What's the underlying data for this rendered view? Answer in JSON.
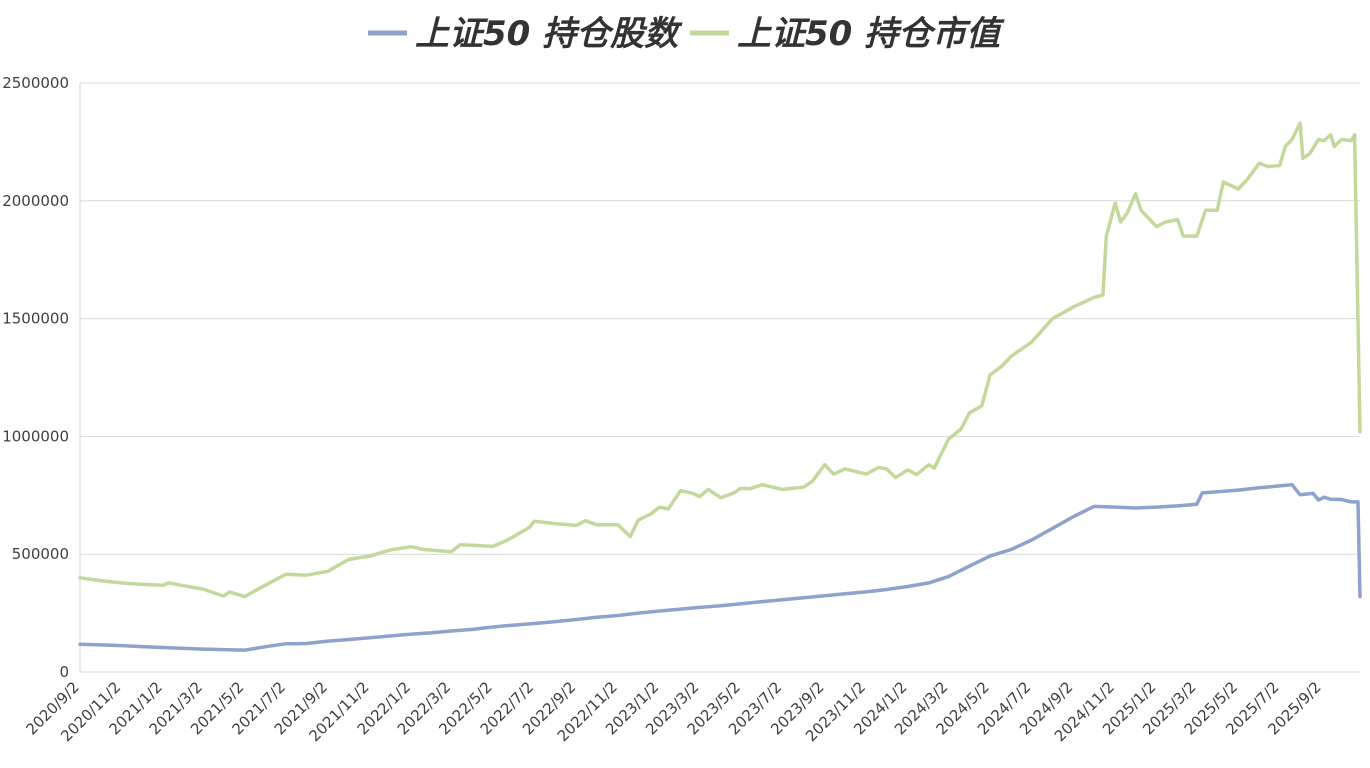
{
  "chart_data": {
    "type": "line",
    "title": "",
    "xlabel": "",
    "ylabel": "",
    "ylim": [
      0,
      2500000
    ],
    "yticks": [
      0,
      500000,
      1000000,
      1500000,
      2000000,
      2500000
    ],
    "ytick_labels": [
      "0",
      "500000",
      "1000000",
      "1500000",
      "2000000",
      "2500000"
    ],
    "x_tick_labels": [
      "2020/9/2",
      "2020/11/2",
      "2021/1/2",
      "2021/3/2",
      "2021/5/2",
      "2021/7/2",
      "2021/9/2",
      "2021/11/2",
      "2022/1/2",
      "2022/3/2",
      "2022/5/2",
      "2022/7/2",
      "2022/9/2",
      "2022/11/2",
      "2023/1/2",
      "2023/3/2",
      "2023/5/2",
      "2023/7/2",
      "2023/9/2",
      "2023/11/2",
      "2024/1/2",
      "2024/3/2",
      "2024/5/2",
      "2024/7/2",
      "2024/9/2",
      "2024/11/2",
      "2025/1/2",
      "2025/3/2",
      "2025/5/2",
      "2025/7/2",
      "2025/9/2"
    ],
    "grid": true,
    "legend_position": "top",
    "series": [
      {
        "name": "上证50 持仓股数",
        "color": "#8ea2cc",
        "points": [
          [
            "2020/9/2",
            118000
          ],
          [
            "2020/10/2",
            115000
          ],
          [
            "2020/11/2",
            112000
          ],
          [
            "2020/12/2",
            108000
          ],
          [
            "2021/1/2",
            104000
          ],
          [
            "2021/2/2",
            100000
          ],
          [
            "2021/3/2",
            97000
          ],
          [
            "2021/4/1",
            95000
          ],
          [
            "2021/4/15",
            94000
          ],
          [
            "2021/5/2",
            93000
          ],
          [
            "2021/6/1",
            107000
          ],
          [
            "2021/7/2",
            120000
          ],
          [
            "2021/7/15",
            120000
          ],
          [
            "2021/8/1",
            121000
          ],
          [
            "2021/9/2",
            131000
          ],
          [
            "2021/10/2",
            138000
          ],
          [
            "2021/11/2",
            145000
          ],
          [
            "2021/12/2",
            153000
          ],
          [
            "2022/1/2",
            161000
          ],
          [
            "2022/2/2",
            167000
          ],
          [
            "2022/3/2",
            174000
          ],
          [
            "2022/4/2",
            181000
          ],
          [
            "2022/5/2",
            191000
          ],
          [
            "2022/6/2",
            199000
          ],
          [
            "2022/7/2",
            206000
          ],
          [
            "2022/8/2",
            214000
          ],
          [
            "2022/9/2",
            223000
          ],
          [
            "2022/10/2",
            232000
          ],
          [
            "2022/11/2",
            240000
          ],
          [
            "2022/12/2",
            250000
          ],
          [
            "2023/1/2",
            259000
          ],
          [
            "2023/2/2",
            267000
          ],
          [
            "2023/3/2",
            274000
          ],
          [
            "2023/4/2",
            281000
          ],
          [
            "2023/5/2",
            290000
          ],
          [
            "2023/6/2",
            299000
          ],
          [
            "2023/7/2",
            307000
          ],
          [
            "2023/8/2",
            315000
          ],
          [
            "2023/9/2",
            324000
          ],
          [
            "2023/10/2",
            332000
          ],
          [
            "2023/11/2",
            340000
          ],
          [
            "2023/12/2",
            350000
          ],
          [
            "2024/1/2",
            363000
          ],
          [
            "2024/2/2",
            378000
          ],
          [
            "2024/3/2",
            405000
          ],
          [
            "2024/4/2",
            450000
          ],
          [
            "2024/5/2",
            492000
          ],
          [
            "2024/6/2",
            520000
          ],
          [
            "2024/7/2",
            560000
          ],
          [
            "2024/8/2",
            610000
          ],
          [
            "2024/9/2",
            660000
          ],
          [
            "2024/10/2",
            703000
          ],
          [
            "2024/11/2",
            700000
          ],
          [
            "2024/12/2",
            696000
          ],
          [
            "2025/1/2",
            700000
          ],
          [
            "2025/2/2",
            705000
          ],
          [
            "2025/3/2",
            712000
          ],
          [
            "2025/3/10",
            760000
          ],
          [
            "2025/4/2",
            765000
          ],
          [
            "2025/5/2",
            772000
          ],
          [
            "2025/6/2",
            782000
          ],
          [
            "2025/7/2",
            790000
          ],
          [
            "2025/7/20",
            795000
          ],
          [
            "2025/8/1",
            752000
          ],
          [
            "2025/8/20",
            758000
          ],
          [
            "2025/8/28",
            730000
          ],
          [
            "2025/9/5",
            742000
          ],
          [
            "2025/9/15",
            733000
          ],
          [
            "2025/10/1",
            732000
          ],
          [
            "2025/10/15",
            722000
          ],
          [
            "2025/10/25",
            722000
          ],
          [
            "2025/10/28",
            320000
          ]
        ]
      },
      {
        "name": "上证50 持仓市值",
        "color": "#c5d89c",
        "points": [
          [
            "2020/9/2",
            400000
          ],
          [
            "2020/10/2",
            388000
          ],
          [
            "2020/11/2",
            378000
          ],
          [
            "2020/12/2",
            372000
          ],
          [
            "2021/1/2",
            368000
          ],
          [
            "2021/1/10",
            378000
          ],
          [
            "2021/2/2",
            366000
          ],
          [
            "2021/3/2",
            352000
          ],
          [
            "2021/4/1",
            322000
          ],
          [
            "2021/4/10",
            340000
          ],
          [
            "2021/5/2",
            320000
          ],
          [
            "2021/6/1",
            368000
          ],
          [
            "2021/7/2",
            415000
          ],
          [
            "2021/8/1",
            411000
          ],
          [
            "2021/9/2",
            428000
          ],
          [
            "2021/10/2",
            478000
          ],
          [
            "2021/11/2",
            492000
          ],
          [
            "2021/12/2",
            518000
          ],
          [
            "2022/1/2",
            532000
          ],
          [
            "2022/1/20",
            520000
          ],
          [
            "2022/3/2",
            510000
          ],
          [
            "2022/3/15",
            540000
          ],
          [
            "2022/4/2",
            538000
          ],
          [
            "2022/5/2",
            533000
          ],
          [
            "2022/5/20",
            555000
          ],
          [
            "2022/6/2",
            575000
          ],
          [
            "2022/6/25",
            615000
          ],
          [
            "2022/7/2",
            640000
          ],
          [
            "2022/8/2",
            630000
          ],
          [
            "2022/9/2",
            622000
          ],
          [
            "2022/9/15",
            642000
          ],
          [
            "2022/10/2",
            625000
          ],
          [
            "2022/11/2",
            625000
          ],
          [
            "2022/11/20",
            575000
          ],
          [
            "2022/12/2",
            645000
          ],
          [
            "2022/12/20",
            670000
          ],
          [
            "2023/1/2",
            700000
          ],
          [
            "2023/1/15",
            692000
          ],
          [
            "2023/2/2",
            770000
          ],
          [
            "2023/2/20",
            758000
          ],
          [
            "2023/3/2",
            745000
          ],
          [
            "2023/3/15",
            775000
          ],
          [
            "2023/4/2",
            740000
          ],
          [
            "2023/4/20",
            758000
          ],
          [
            "2023/5/2",
            780000
          ],
          [
            "2023/5/15",
            778000
          ],
          [
            "2023/6/2",
            795000
          ],
          [
            "2023/7/2",
            775000
          ],
          [
            "2023/8/2",
            785000
          ],
          [
            "2023/8/15",
            810000
          ],
          [
            "2023/9/2",
            880000
          ],
          [
            "2023/9/15",
            840000
          ],
          [
            "2023/10/2",
            862000
          ],
          [
            "2023/11/2",
            840000
          ],
          [
            "2023/11/20",
            868000
          ],
          [
            "2023/12/2",
            862000
          ],
          [
            "2023/12/15",
            825000
          ],
          [
            "2024/1/2",
            858000
          ],
          [
            "2024/1/15",
            838000
          ],
          [
            "2024/2/2",
            880000
          ],
          [
            "2024/2/10",
            865000
          ],
          [
            "2024/3/2",
            988000
          ],
          [
            "2024/3/20",
            1030000
          ],
          [
            "2024/4/2",
            1100000
          ],
          [
            "2024/4/20",
            1130000
          ],
          [
            "2024/5/2",
            1260000
          ],
          [
            "2024/5/20",
            1300000
          ],
          [
            "2024/6/2",
            1340000
          ],
          [
            "2024/7/2",
            1400000
          ],
          [
            "2024/8/2",
            1500000
          ],
          [
            "2024/9/2",
            1550000
          ],
          [
            "2024/10/2",
            1590000
          ],
          [
            "2024/10/15",
            1600000
          ],
          [
            "2024/10/20",
            1850000
          ],
          [
            "2024/11/2",
            1990000
          ],
          [
            "2024/11/10",
            1910000
          ],
          [
            "2024/11/20",
            1950000
          ],
          [
            "2024/12/2",
            2030000
          ],
          [
            "2024/12/10",
            1960000
          ],
          [
            "2025/1/2",
            1890000
          ],
          [
            "2025/1/15",
            1910000
          ],
          [
            "2025/2/2",
            1920000
          ],
          [
            "2025/2/10",
            1850000
          ],
          [
            "2025/3/2",
            1850000
          ],
          [
            "2025/3/15",
            1960000
          ],
          [
            "2025/4/1",
            1960000
          ],
          [
            "2025/4/10",
            2080000
          ],
          [
            "2025/5/2",
            2050000
          ],
          [
            "2025/5/15",
            2090000
          ],
          [
            "2025/6/2",
            2160000
          ],
          [
            "2025/6/15",
            2145000
          ],
          [
            "2025/7/2",
            2150000
          ],
          [
            "2025/7/10",
            2230000
          ],
          [
            "2025/7/20",
            2260000
          ],
          [
            "2025/8/1",
            2330000
          ],
          [
            "2025/8/5",
            2180000
          ],
          [
            "2025/8/15",
            2200000
          ],
          [
            "2025/8/28",
            2260000
          ],
          [
            "2025/9/5",
            2255000
          ],
          [
            "2025/9/15",
            2280000
          ],
          [
            "2025/9/20",
            2230000
          ],
          [
            "2025/10/1",
            2260000
          ],
          [
            "2025/10/15",
            2255000
          ],
          [
            "2025/10/20",
            2280000
          ],
          [
            "2025/10/28",
            1020000
          ]
        ]
      }
    ]
  }
}
